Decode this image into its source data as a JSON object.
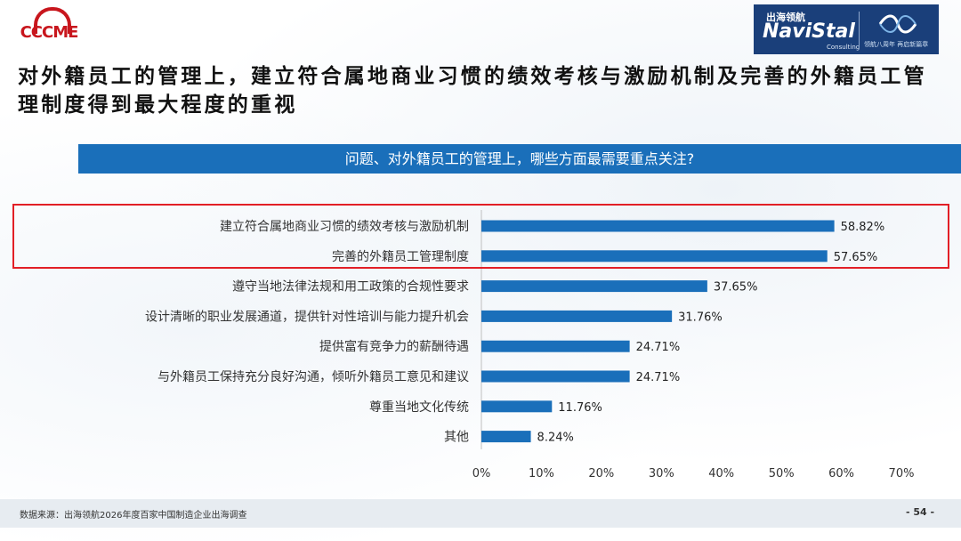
{
  "logos": {
    "left_text": "CCCME",
    "right_cn": "出海领航",
    "right_en": "NaviStal",
    "right_sub": "Consulting",
    "right_slogan": "领航八周年 再启新篇章"
  },
  "headline": "对外籍员工的管理上，建立符合属地商业习惯的绩效考核与激励机制及完善的外籍员工管理制度得到最大程度的重视",
  "question": "问题、对外籍员工的管理上，哪些方面最需要重点关注?",
  "colors": {
    "bar": "#1a6fba",
    "highlight": "#e21f26",
    "question_bar": "#1a6fba"
  },
  "chart_data": {
    "type": "bar",
    "orientation": "horizontal",
    "categories": [
      "建立符合属地商业习惯的绩效考核与激励机制",
      "完善的外籍员工管理制度",
      "遵守当地法律法规和用工政策的合规性要求",
      "设计清晰的职业发展通道，提供针对性培训与能力提升机会",
      "提供富有竞争力的薪酬待遇",
      "与外籍员工保持充分良好沟通，倾听外籍员工意见和建议",
      "尊重当地文化传统",
      "其他"
    ],
    "values": [
      58.82,
      57.65,
      37.65,
      31.76,
      24.71,
      24.71,
      11.76,
      8.24
    ],
    "data_labels": [
      "58.82%",
      "57.65%",
      "37.65%",
      "31.76%",
      "24.71%",
      "24.71%",
      "11.76%",
      "8.24%"
    ],
    "xlim": [
      0,
      70
    ],
    "x_ticks": [
      "0%",
      "10%",
      "20%",
      "30%",
      "40%",
      "50%",
      "60%",
      "70%"
    ],
    "highlighted_categories": [
      0,
      1
    ],
    "grid": false
  },
  "footer": {
    "source": "数据来源：出海领航2026年度百家中国制造企业出海调查",
    "page": "- 54 -"
  }
}
